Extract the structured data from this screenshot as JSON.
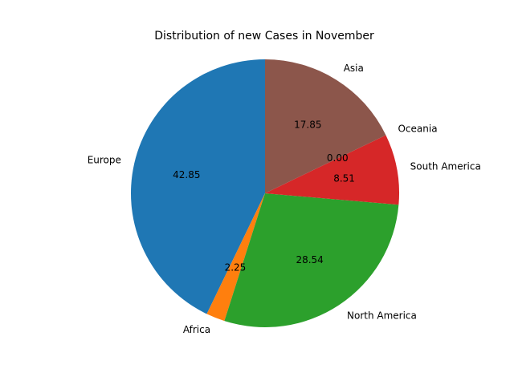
{
  "chart_data": {
    "type": "pie",
    "title": "Distribution of new Cases in November",
    "start_angle_deg": 90,
    "direction": "counterclockwise",
    "slices": [
      {
        "label": "Europe",
        "value": 42.85,
        "display": "42.85",
        "color": "#1f77b4"
      },
      {
        "label": "Africa",
        "value": 2.25,
        "display": "2.25",
        "color": "#ff7f0e"
      },
      {
        "label": "North America",
        "value": 28.54,
        "display": "28.54",
        "color": "#2ca02c"
      },
      {
        "label": "South America",
        "value": 8.51,
        "display": "8.51",
        "color": "#d62728"
      },
      {
        "label": "Oceania",
        "value": 0.0,
        "display": "0.00",
        "color": "#9467bd"
      },
      {
        "label": "Asia",
        "value": 17.85,
        "display": "17.85",
        "color": "#8c564b"
      }
    ]
  }
}
